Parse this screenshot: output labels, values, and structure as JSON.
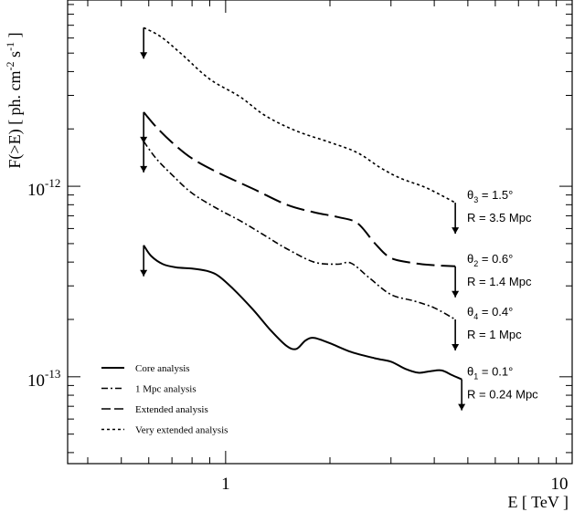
{
  "chart_data": {
    "type": "line",
    "xscale": "log",
    "yscale": "log",
    "xlim": [
      0.35,
      10
    ],
    "ylim": [
      3.5e-14,
      9.5e-12
    ],
    "xlabel": "E [ TeV ]",
    "ylabel": "F(>E)  [ ph. cm-2 s-1 ]",
    "xticks": [
      {
        "value": 1,
        "label": "1"
      },
      {
        "value": 10,
        "label": "10"
      }
    ],
    "yticks": [
      {
        "value": 1e-12,
        "base": "10",
        "exp": "-12"
      },
      {
        "value": 1e-13,
        "base": "10",
        "exp": "-13"
      }
    ],
    "grid": false,
    "legend_position": "lower-left",
    "series": [
      {
        "name": "Core analysis",
        "dash": "solid",
        "annotation_theta": "θ1 = 0.1°",
        "annotation_R": "R = 0.24 Mpc",
        "points": [
          [
            0.58,
            4.9e-13
          ],
          [
            0.61,
            4.3e-13
          ],
          [
            0.66,
            3.9e-13
          ],
          [
            0.72,
            3.75e-13
          ],
          [
            0.8,
            3.7e-13
          ],
          [
            0.88,
            3.6e-13
          ],
          [
            0.95,
            3.4e-13
          ],
          [
            1.05,
            2.9e-13
          ],
          [
            1.2,
            2.25e-13
          ],
          [
            1.35,
            1.75e-13
          ],
          [
            1.5,
            1.45e-13
          ],
          [
            1.6,
            1.4e-13
          ],
          [
            1.7,
            1.55e-13
          ],
          [
            1.8,
            1.6e-13
          ],
          [
            2.0,
            1.5e-13
          ],
          [
            2.3,
            1.35e-13
          ],
          [
            2.7,
            1.25e-13
          ],
          [
            3.0,
            1.2e-13
          ],
          [
            3.3,
            1.1e-13
          ],
          [
            3.6,
            1.05e-13
          ],
          [
            3.9,
            1.07e-13
          ],
          [
            4.2,
            1.08e-13
          ],
          [
            4.5,
            1.02e-13
          ],
          [
            4.8,
            9.7e-14
          ]
        ]
      },
      {
        "name": "1 Mpc analysis",
        "dash": "dashdot",
        "annotation_theta": "θ4 = 0.4°",
        "annotation_R": "R = 1 Mpc",
        "points": [
          [
            0.58,
            1.72e-12
          ],
          [
            0.63,
            1.4e-12
          ],
          [
            0.7,
            1.15e-12
          ],
          [
            0.8,
            9.2e-13
          ],
          [
            0.95,
            7.6e-13
          ],
          [
            1.1,
            6.6e-13
          ],
          [
            1.3,
            5.5e-13
          ],
          [
            1.5,
            4.7e-13
          ],
          [
            1.8,
            4e-13
          ],
          [
            2.1,
            3.9e-13
          ],
          [
            2.3,
            3.95e-13
          ],
          [
            2.6,
            3.3e-13
          ],
          [
            3.0,
            2.7e-13
          ],
          [
            3.5,
            2.5e-13
          ],
          [
            4.0,
            2.3e-13
          ],
          [
            4.6,
            2e-13
          ]
        ]
      },
      {
        "name": "Extended analysis",
        "dash": "longdash",
        "annotation_theta": "θ2 = 0.6°",
        "annotation_R": "R = 1.4 Mpc",
        "points": [
          [
            0.58,
            2.45e-12
          ],
          [
            0.63,
            2.05e-12
          ],
          [
            0.7,
            1.7e-12
          ],
          [
            0.8,
            1.4e-12
          ],
          [
            0.95,
            1.18e-12
          ],
          [
            1.2,
            9.7e-13
          ],
          [
            1.5,
            8e-13
          ],
          [
            1.8,
            7.3e-13
          ],
          [
            2.1,
            6.9e-13
          ],
          [
            2.4,
            6.4e-13
          ],
          [
            2.7,
            5e-13
          ],
          [
            3.0,
            4.2e-13
          ],
          [
            3.5,
            3.95e-13
          ],
          [
            4.0,
            3.85e-13
          ],
          [
            4.6,
            3.8e-13
          ]
        ]
      },
      {
        "name": "Very extended analysis",
        "dash": "dotted",
        "annotation_theta": "θ3 = 1.5°",
        "annotation_R": "R = 3.5 Mpc",
        "points": [
          [
            0.58,
            6.8e-12
          ],
          [
            0.65,
            6.1e-12
          ],
          [
            0.75,
            4.9e-12
          ],
          [
            0.9,
            3.65e-12
          ],
          [
            1.1,
            2.95e-12
          ],
          [
            1.3,
            2.35e-12
          ],
          [
            1.6,
            1.95e-12
          ],
          [
            2.0,
            1.7e-12
          ],
          [
            2.4,
            1.5e-12
          ],
          [
            2.8,
            1.25e-12
          ],
          [
            3.2,
            1.1e-12
          ],
          [
            3.8,
            9.8e-13
          ],
          [
            4.6,
            8.2e-13
          ]
        ]
      }
    ]
  },
  "legend_items": [
    {
      "label": "Core analysis"
    },
    {
      "label": "1 Mpc analysis"
    },
    {
      "label": "Extended analysis"
    },
    {
      "label": "Very extended analysis"
    }
  ]
}
